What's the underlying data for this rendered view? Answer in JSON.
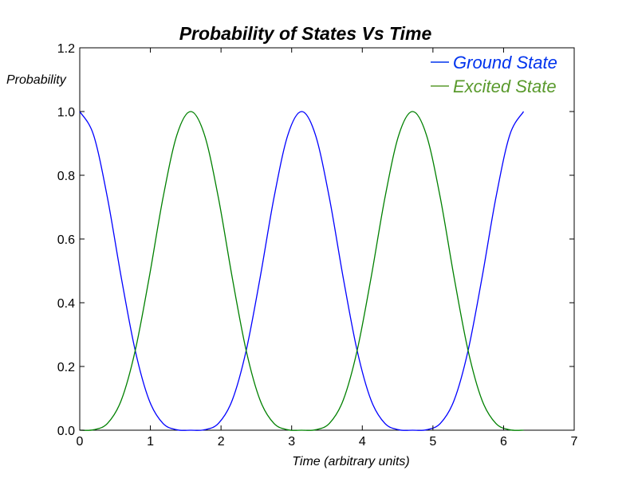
{
  "chart_data": {
    "type": "line",
    "title": "Probability of States Vs Time",
    "xlabel": "Time (arbitrary units)",
    "ylabel": "Probability",
    "xlim": [
      0,
      7
    ],
    "ylim": [
      0,
      1.2
    ],
    "x_ticks": [
      "0",
      "1",
      "2",
      "3",
      "4",
      "5",
      "6",
      "7"
    ],
    "y_ticks": [
      "0.0",
      "0.2",
      "0.4",
      "0.6",
      "0.8",
      "1.0",
      "1.2"
    ],
    "grid": false,
    "legend_position": "top-right",
    "x": [
      0.0,
      0.1963,
      0.3927,
      0.589,
      0.7854,
      0.9817,
      1.1781,
      1.3744,
      1.5708,
      1.7671,
      1.9635,
      2.1598,
      2.3562,
      2.5525,
      2.7489,
      2.9452,
      3.1416,
      3.3379,
      3.5343,
      3.7306,
      3.927,
      4.1233,
      4.3197,
      4.516,
      4.7124,
      4.9087,
      5.1051,
      5.3014,
      5.4978,
      5.6941,
      5.8905,
      6.0868,
      6.2832
    ],
    "series": [
      {
        "name": "Ground State",
        "color": "#0000ff",
        "values": [
          1.0,
          0.9259,
          0.7286,
          0.4775,
          0.25,
          0.0946,
          0.0214,
          0.0014,
          0.0,
          0.0014,
          0.0214,
          0.0946,
          0.25,
          0.4775,
          0.7286,
          0.9259,
          1.0,
          0.9259,
          0.7286,
          0.4775,
          0.25,
          0.0946,
          0.0214,
          0.0014,
          0.0,
          0.0014,
          0.0214,
          0.0946,
          0.25,
          0.4775,
          0.7286,
          0.9259,
          1.0
        ]
      },
      {
        "name": "Excited State",
        "color": "#008000",
        "values": [
          0.0,
          0.0014,
          0.0214,
          0.0946,
          0.25,
          0.4775,
          0.7286,
          0.9259,
          1.0,
          0.9259,
          0.7286,
          0.4775,
          0.25,
          0.0946,
          0.0214,
          0.0014,
          0.0,
          0.0014,
          0.0214,
          0.0946,
          0.25,
          0.4775,
          0.7286,
          0.9259,
          1.0,
          0.9259,
          0.7286,
          0.4775,
          0.25,
          0.0946,
          0.0214,
          0.0014,
          0.0
        ]
      }
    ]
  },
  "legend": {
    "items": [
      {
        "label": "Ground State",
        "color": "#0033ee"
      },
      {
        "label": "Excited State",
        "color": "#5a9a2d"
      }
    ]
  }
}
